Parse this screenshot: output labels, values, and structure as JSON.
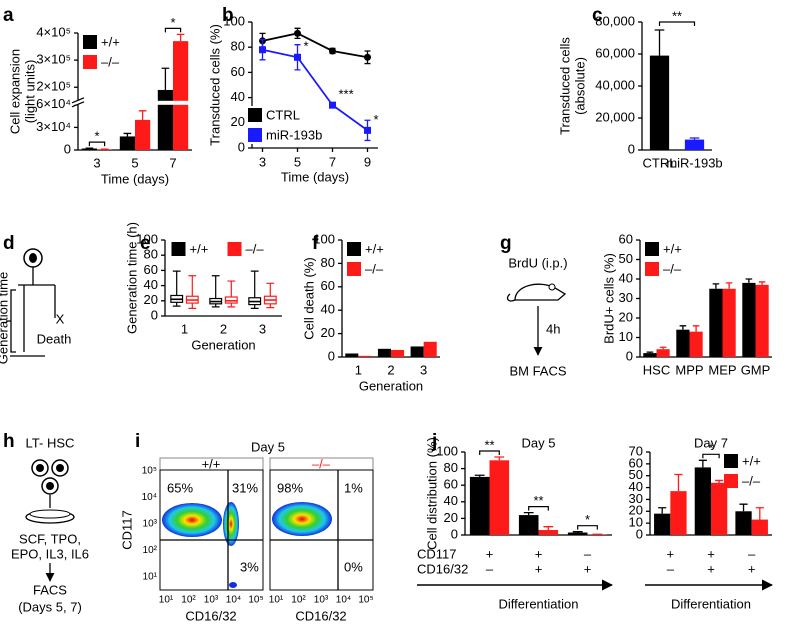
{
  "chart_data": [
    {
      "panel_label": "a",
      "type": "bar",
      "categories": [
        "3",
        "5",
        "7"
      ],
      "xlabel": "Time (days)",
      "ylabel": [
        "Cell expansion",
        "(light units)"
      ],
      "series": [
        {
          "name": "+/+",
          "color": "#000000",
          "values": [
            2000,
            18000,
            190000
          ],
          "errors": [
            500,
            4000,
            80000
          ]
        },
        {
          "name": "–/–",
          "color": "#ff1a1a",
          "values": [
            800,
            40000,
            370000
          ],
          "errors": [
            300,
            12000,
            25000
          ]
        }
      ],
      "ylim": [
        0,
        400000
      ],
      "axis_break": [
        60000,
        150000
      ],
      "yticks": [
        0,
        {
          "value": 30000,
          "label": "3×10⁴"
        },
        {
          "value": 60000,
          "label": "6×10⁴"
        },
        {
          "value": 200000,
          "label": "2×10⁵"
        },
        {
          "value": 300000,
          "label": "3×10⁵"
        },
        {
          "value": 400000,
          "label": "4×10⁵"
        }
      ],
      "significance": [
        "*",
        null,
        "*"
      ],
      "legend": "upper left"
    },
    {
      "panel_label": "b",
      "type": "line",
      "x": [
        3,
        5,
        7,
        9
      ],
      "xlim": [
        2.4,
        9.6
      ],
      "xticks": [
        3,
        5,
        7,
        9
      ],
      "ylim": [
        0,
        100
      ],
      "yticks": [
        0,
        20,
        40,
        60,
        80,
        100
      ],
      "xlabel": "Time (days)",
      "ylabel": "Transduced cells (%)",
      "series": [
        {
          "name": "CTRL",
          "color": "#000000",
          "values": [
            85,
            91,
            77,
            72
          ],
          "errors": [
            6,
            4,
            2,
            5
          ]
        },
        {
          "name": "miR-193b",
          "color": "#1a1aff",
          "values": [
            78,
            72,
            34,
            14
          ],
          "errors": [
            8,
            10,
            1,
            8
          ]
        }
      ],
      "significance": [
        null,
        "*",
        "***",
        "*"
      ],
      "legend": "lower left"
    },
    {
      "panel_label": "c",
      "type": "bar",
      "categories": [
        "CTRL",
        "miR-193b"
      ],
      "values": [
        59000,
        6500
      ],
      "errors": [
        16000,
        1000
      ],
      "colors": [
        "#000000",
        "#1a1aff"
      ],
      "ylim": [
        0,
        80000
      ],
      "yticks": [
        0,
        {
          "value": 20000,
          "label": "20,000"
        },
        {
          "value": 40000,
          "label": "40,000"
        },
        {
          "value": 60000,
          "label": "60,000"
        },
        {
          "value": 80000,
          "label": "80,000"
        }
      ],
      "ylabel": [
        "Transduced cells",
        "(absolute)"
      ],
      "significance": "**"
    },
    {
      "panel_label": "e",
      "type": "box",
      "categories": [
        "1",
        "2",
        "3"
      ],
      "xlabel": "Generation",
      "ylabel": "Generation time (h)",
      "ylim": [
        0,
        100
      ],
      "yticks": [
        0,
        20,
        40,
        60,
        80,
        100
      ],
      "legend": "upper center",
      "series": [
        {
          "name": "+/+",
          "color": "#000000",
          "boxes": [
            {
              "min": 13,
              "q1": 18,
              "median": 22,
              "q3": 27,
              "max": 59
            },
            {
              "min": 12,
              "q1": 16,
              "median": 19,
              "q3": 23,
              "max": 53
            },
            {
              "min": 10,
              "q1": 15,
              "median": 19,
              "q3": 24,
              "max": 59
            }
          ]
        },
        {
          "name": "–/–",
          "color": "#ff1a1a",
          "boxes": [
            {
              "min": 10,
              "q1": 17,
              "median": 21,
              "q3": 26,
              "max": 53
            },
            {
              "min": 12,
              "q1": 17,
              "median": 20,
              "q3": 25,
              "max": 46
            },
            {
              "min": 11,
              "q1": 16,
              "median": 21,
              "q3": 26,
              "max": 43
            }
          ]
        }
      ]
    },
    {
      "panel_label": "f",
      "type": "bar",
      "categories": [
        "1",
        "2",
        "3"
      ],
      "xlabel": "Generation",
      "ylabel": "Cell death (%)",
      "ylim": [
        0,
        100
      ],
      "yticks": [
        0,
        20,
        40,
        60,
        80,
        100
      ],
      "legend": "upper left",
      "series": [
        {
          "name": "+/+",
          "color": "#000000",
          "values": [
            3,
            7,
            9
          ]
        },
        {
          "name": "–/–",
          "color": "#ff1a1a",
          "values": [
            1,
            6,
            13
          ]
        }
      ]
    },
    {
      "panel_label": "g",
      "type": "bar",
      "categories": [
        "HSC",
        "MPP",
        "MEP",
        "GMP"
      ],
      "ylabel": "BrdU+ cells (%)",
      "ylim": [
        0,
        60
      ],
      "yticks": [
        0,
        10,
        20,
        30,
        40,
        50,
        60
      ],
      "legend": "upper left",
      "series": [
        {
          "name": "+/+",
          "color": "#000000",
          "values": [
            2,
            14,
            35,
            38
          ],
          "errors": [
            0.5,
            2,
            2.5,
            2
          ]
        },
        {
          "name": "–/–",
          "color": "#ff1a1a",
          "values": [
            4,
            13,
            35,
            37
          ],
          "errors": [
            1,
            3,
            3,
            1.5
          ]
        }
      ]
    },
    {
      "panel_label": "j",
      "type": "bar",
      "title": "Day 5",
      "categories": [
        null,
        null,
        null
      ],
      "ylabel": "Cell distribution (%)",
      "xlabel": "Differentiation",
      "ylim": [
        0,
        100
      ],
      "yticks": [
        0,
        20,
        40,
        60,
        80,
        100
      ],
      "series": [
        {
          "color": "#000000",
          "values": [
            70,
            24,
            3
          ],
          "errors": [
            2,
            3,
            1
          ]
        },
        {
          "color": "#ff1a1a",
          "values": [
            90,
            6,
            0.5
          ],
          "errors": [
            4,
            4,
            0.3
          ]
        }
      ],
      "marker_rows": [
        {
          "name": "CD117",
          "values": [
            "+",
            "+",
            "–"
          ]
        },
        {
          "name": "CD16/32",
          "values": [
            "–",
            "+",
            "+"
          ]
        }
      ],
      "significance": [
        "**",
        "**",
        "*"
      ]
    },
    {
      "type": "bar",
      "title": "Day 7",
      "categories": [
        null,
        null,
        null
      ],
      "xlabel": "Differentiation",
      "ylim": [
        0,
        70
      ],
      "yticks": [
        0,
        10,
        20,
        30,
        40,
        50,
        60,
        70
      ],
      "legend": "upper right",
      "series": [
        {
          "name": "+/+",
          "color": "#000000",
          "values": [
            18,
            57,
            20
          ],
          "errors": [
            5,
            6,
            6
          ]
        },
        {
          "name": "–/–",
          "color": "#ff1a1a",
          "values": [
            37,
            44,
            13
          ],
          "errors": [
            14,
            2,
            10
          ]
        }
      ],
      "marker_rows": [
        {
          "values": [
            "+",
            "+",
            "–"
          ]
        },
        {
          "values": [
            "–",
            "+",
            "+"
          ]
        }
      ],
      "significance": [
        null,
        "*",
        null
      ]
    }
  ],
  "diagrams": {
    "d": {
      "panel_label": "d",
      "axis_label": "Generation time",
      "mark": "X",
      "event": "Death"
    },
    "g": {
      "injection": "BrdU (i.p.)",
      "interval": "4h",
      "readout": "BM FACS"
    },
    "h": {
      "panel_label": "h",
      "cells": "LT- HSC",
      "cytokines": [
        "SCF, TPO,",
        "EPO, IL3, IL6"
      ],
      "readout": [
        "FACS",
        "(Days 5, 7)"
      ]
    },
    "i": {
      "panel_label": "i",
      "title": "Day 5",
      "ylabel": "CD117",
      "xlabel": "CD16/32",
      "ticks": [
        "10¹",
        "10²",
        "10³",
        "10⁴",
        "10⁵"
      ],
      "plots": [
        {
          "genotype": "+/+",
          "quadrants": [
            "65%",
            "31%",
            "3%"
          ]
        },
        {
          "genotype": "–/–",
          "quadrants": [
            "98%",
            "1%",
            "0%"
          ]
        }
      ]
    }
  }
}
